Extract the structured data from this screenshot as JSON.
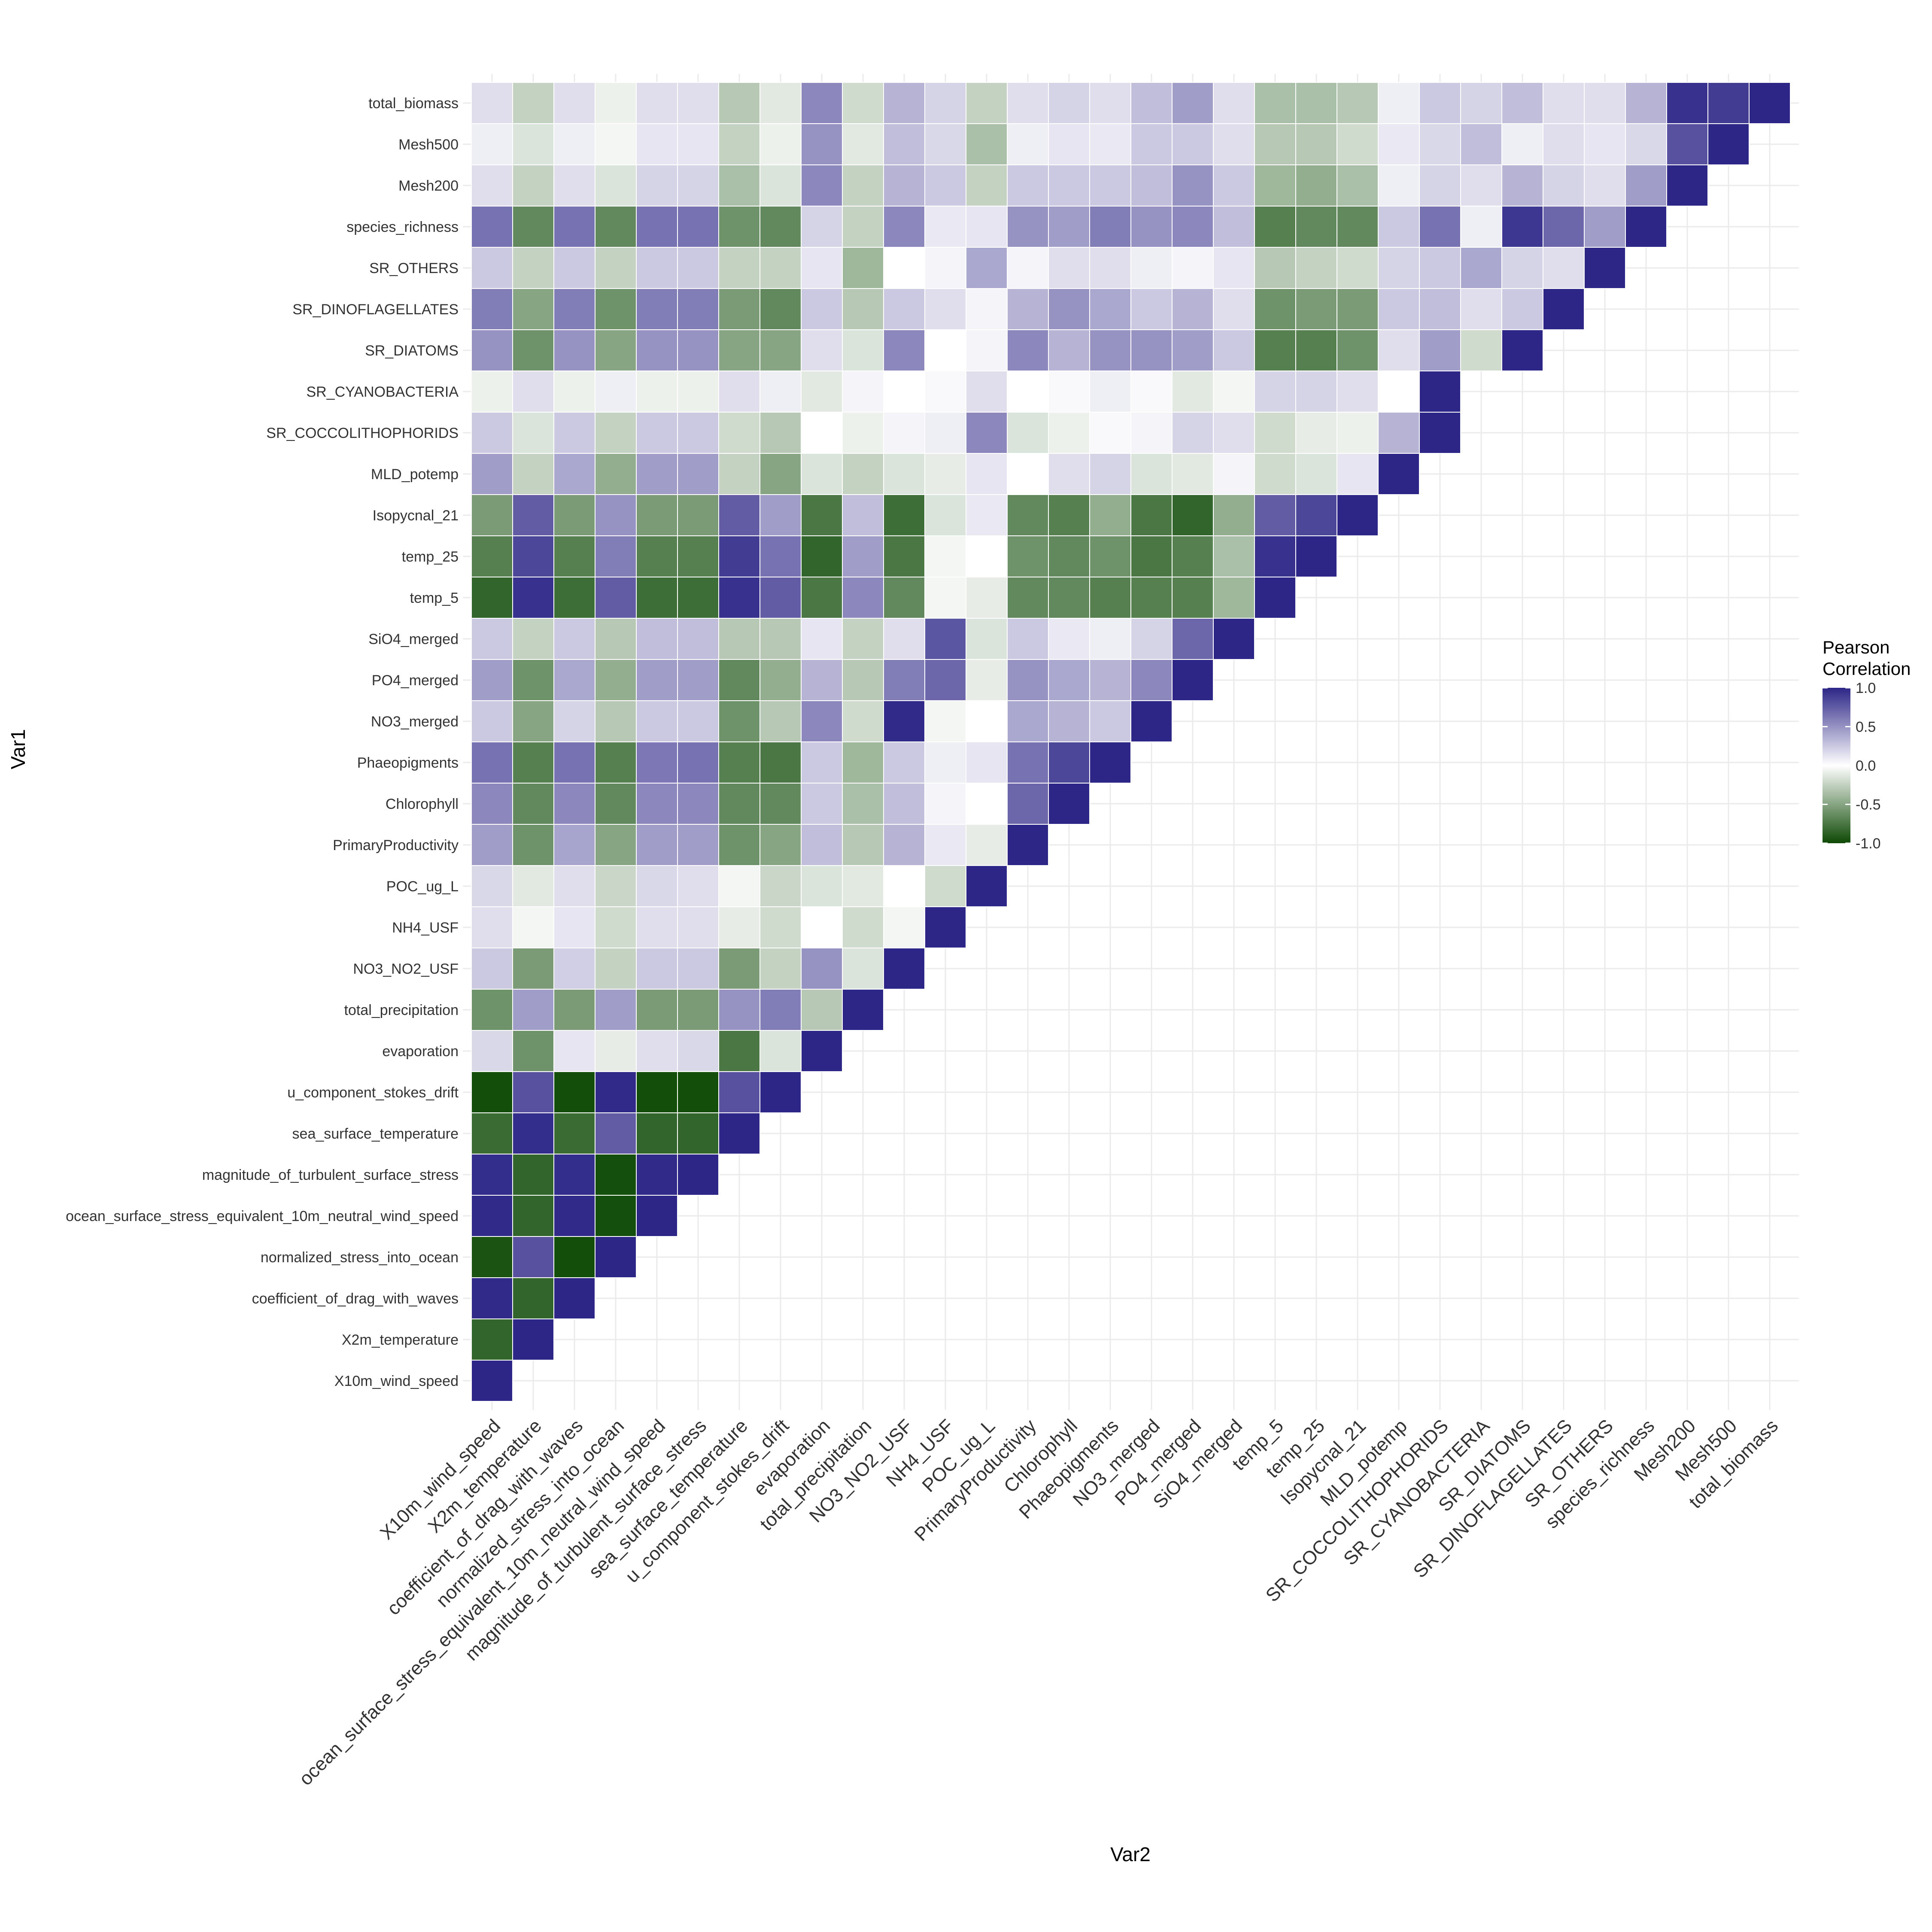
{
  "chart_data": {
    "type": "heatmap",
    "xlabel": "Var2",
    "ylabel": "Var1",
    "legend": {
      "title_line1": "Pearson",
      "title_line2": "Correlation",
      "ticks": [
        "1.0",
        "0.5",
        "0.0",
        "-0.5",
        "-1.0"
      ],
      "tick_values": [
        1,
        0.5,
        0,
        -0.5,
        -1
      ],
      "position": "right"
    },
    "colors": {
      "high": "#2d2687",
      "mid": "#ffffff",
      "low": "#0e4a05"
    },
    "limits": [
      -1,
      1
    ],
    "grid": true,
    "variables": [
      "X10m_wind_speed",
      "X2m_temperature",
      "coefficient_of_drag_with_waves",
      "normalized_stress_into_ocean",
      "ocean_surface_stress_equivalent_10m_neutral_wind_speed",
      "magnitude_of_turbulent_surface_stress",
      "sea_surface_temperature",
      "u_component_stokes_drift",
      "evaporation",
      "total_precipitation",
      "NO3_NO2_USF",
      "NH4_USF",
      "POC_ug_L",
      "PrimaryProductivity",
      "Chlorophyll",
      "Phaeopigments",
      "NO3_merged",
      "PO4_merged",
      "SiO4_merged",
      "temp_5",
      "temp_25",
      "Isopycnal_21",
      "MLD_potemp",
      "SR_COCCOLITHOPHORIDS",
      "SR_CYANOBACTERIA",
      "SR_DIATOMS",
      "SR_DINOFLAGELLATES",
      "SR_OTHERS",
      "species_richness",
      "Mesh200",
      "Mesh500",
      "total_biomass"
    ],
    "rows": [
      [
        1.0
      ],
      [
        -0.85,
        1.0
      ],
      [
        0.98,
        -0.85,
        1.0
      ],
      [
        -0.95,
        0.8,
        -0.98,
        1.0
      ],
      [
        0.98,
        -0.85,
        0.98,
        -0.97,
        1.0
      ],
      [
        0.97,
        -0.85,
        0.97,
        -0.97,
        0.98,
        1.0
      ],
      [
        -0.82,
        0.97,
        -0.82,
        0.75,
        -0.85,
        -0.85,
        1.0
      ],
      [
        -0.98,
        0.8,
        -0.98,
        0.98,
        -0.98,
        -0.98,
        0.8,
        1.0
      ],
      [
        0.18,
        -0.6,
        0.12,
        -0.1,
        0.15,
        0.18,
        -0.75,
        -0.15,
        1.0
      ],
      [
        -0.6,
        0.45,
        -0.55,
        0.45,
        -0.55,
        -0.55,
        0.5,
        0.6,
        -0.3,
        1.0
      ],
      [
        0.25,
        -0.55,
        0.22,
        -0.25,
        0.25,
        0.25,
        -0.55,
        -0.25,
        0.5,
        -0.15,
        1.0
      ],
      [
        0.15,
        -0.05,
        0.12,
        -0.2,
        0.15,
        0.15,
        -0.1,
        -0.2,
        0.0,
        -0.2,
        -0.05,
        1.0
      ],
      [
        0.18,
        -0.12,
        0.15,
        -0.22,
        0.18,
        0.15,
        -0.05,
        -0.22,
        -0.15,
        -0.12,
        0.0,
        -0.2,
        1.0
      ],
      [
        0.45,
        -0.6,
        0.42,
        -0.5,
        0.45,
        0.45,
        -0.6,
        -0.5,
        0.3,
        -0.3,
        0.35,
        0.1,
        -0.1,
        1.0
      ],
      [
        0.55,
        -0.65,
        0.55,
        -0.65,
        0.55,
        0.55,
        -0.65,
        -0.65,
        0.25,
        -0.35,
        0.3,
        0.05,
        0.0,
        0.7,
        1.0
      ],
      [
        0.65,
        -0.7,
        0.65,
        -0.7,
        0.62,
        0.65,
        -0.7,
        -0.75,
        0.25,
        -0.4,
        0.25,
        0.08,
        0.12,
        0.65,
        0.85,
        1.0
      ],
      [
        0.25,
        -0.5,
        0.2,
        -0.3,
        0.25,
        0.25,
        -0.6,
        -0.3,
        0.55,
        -0.2,
        0.98,
        -0.05,
        0.0,
        0.4,
        0.35,
        0.25,
        1.0
      ],
      [
        0.45,
        -0.6,
        0.4,
        -0.45,
        0.45,
        0.45,
        -0.65,
        -0.45,
        0.35,
        -0.3,
        0.6,
        0.7,
        -0.1,
        0.5,
        0.4,
        0.35,
        0.55,
        1.0
      ],
      [
        0.25,
        -0.25,
        0.25,
        -0.3,
        0.3,
        0.3,
        -0.3,
        -0.3,
        0.12,
        -0.25,
        0.15,
        0.78,
        -0.15,
        0.25,
        0.1,
        0.08,
        0.2,
        0.7,
        1.0
      ],
      [
        -0.85,
        0.95,
        -0.8,
        0.75,
        -0.8,
        -0.8,
        0.95,
        0.75,
        -0.75,
        0.55,
        -0.65,
        -0.05,
        -0.1,
        -0.65,
        -0.65,
        -0.7,
        -0.7,
        -0.7,
        -0.4,
        1.0
      ],
      [
        -0.7,
        0.85,
        -0.7,
        0.6,
        -0.7,
        -0.7,
        0.9,
        0.65,
        -0.85,
        0.45,
        -0.75,
        -0.05,
        0.0,
        -0.6,
        -0.65,
        -0.6,
        -0.75,
        -0.7,
        -0.35,
        0.95,
        1.0
      ],
      [
        -0.55,
        0.75,
        -0.55,
        0.5,
        -0.55,
        -0.55,
        0.75,
        0.45,
        -0.75,
        0.3,
        -0.8,
        -0.15,
        0.1,
        -0.65,
        -0.7,
        -0.45,
        -0.75,
        -0.85,
        -0.45,
        0.75,
        0.85,
        1.0
      ],
      [
        0.45,
        -0.25,
        0.4,
        -0.45,
        0.45,
        0.45,
        -0.25,
        -0.5,
        -0.15,
        -0.25,
        -0.15,
        -0.1,
        0.12,
        0.0,
        0.15,
        0.2,
        -0.15,
        -0.12,
        0.05,
        -0.2,
        -0.15,
        0.12,
        1.0
      ],
      [
        0.25,
        -0.15,
        0.25,
        -0.25,
        0.25,
        0.25,
        -0.2,
        -0.3,
        0.0,
        -0.08,
        0.05,
        0.08,
        0.55,
        -0.15,
        -0.08,
        0.03,
        0.05,
        0.2,
        0.15,
        -0.2,
        -0.1,
        -0.08,
        0.35,
        1.0
      ],
      [
        -0.08,
        0.15,
        -0.08,
        0.08,
        -0.08,
        -0.08,
        0.15,
        0.08,
        -0.12,
        0.05,
        0.0,
        0.03,
        0.15,
        0.0,
        0.03,
        0.08,
        0.03,
        -0.12,
        -0.05,
        0.2,
        0.2,
        0.15,
        0.0,
        1.0
      ],
      [
        0.5,
        -0.6,
        0.5,
        -0.5,
        0.5,
        0.5,
        -0.5,
        -0.5,
        0.15,
        -0.15,
        0.55,
        0.0,
        0.05,
        0.55,
        0.35,
        0.5,
        0.5,
        0.45,
        0.25,
        -0.7,
        -0.7,
        -0.6,
        0.15,
        0.45,
        -0.2,
        1.0
      ],
      [
        0.6,
        -0.5,
        0.6,
        -0.6,
        0.6,
        0.6,
        -0.55,
        -0.65,
        0.25,
        -0.3,
        0.25,
        0.15,
        0.05,
        0.35,
        0.5,
        0.4,
        0.25,
        0.35,
        0.15,
        -0.6,
        -0.55,
        -0.55,
        0.25,
        0.3,
        0.15,
        0.25,
        1.0
      ],
      [
        0.25,
        -0.25,
        0.25,
        -0.25,
        0.25,
        0.25,
        -0.25,
        -0.25,
        0.12,
        -0.4,
        0.0,
        0.05,
        0.4,
        0.05,
        0.15,
        0.15,
        0.08,
        0.05,
        0.12,
        -0.3,
        -0.25,
        -0.2,
        0.2,
        0.25,
        0.4,
        0.2,
        0.15,
        1.0
      ],
      [
        0.65,
        -0.65,
        0.65,
        -0.65,
        0.65,
        0.65,
        -0.6,
        -0.65,
        0.2,
        -0.25,
        0.55,
        0.1,
        0.12,
        0.5,
        0.45,
        0.6,
        0.5,
        0.55,
        0.3,
        -0.7,
        -0.65,
        -0.65,
        0.25,
        0.65,
        0.08,
        0.92,
        0.7,
        0.45,
        1.0
      ],
      [
        0.15,
        -0.25,
        0.15,
        -0.15,
        0.2,
        0.2,
        -0.35,
        -0.15,
        0.55,
        -0.25,
        0.35,
        0.25,
        -0.25,
        0.25,
        0.25,
        0.25,
        0.3,
        0.5,
        0.25,
        -0.4,
        -0.45,
        -0.35,
        0.08,
        0.2,
        0.15,
        0.35,
        0.2,
        0.15,
        0.45,
        1.0
      ],
      [
        0.08,
        -0.15,
        0.08,
        -0.05,
        0.12,
        0.12,
        -0.25,
        -0.08,
        0.5,
        -0.12,
        0.3,
        0.18,
        -0.35,
        0.08,
        0.12,
        0.1,
        0.25,
        0.25,
        0.15,
        -0.3,
        -0.3,
        -0.2,
        0.1,
        0.18,
        0.3,
        0.08,
        0.15,
        0.12,
        0.18,
        0.8,
        1.0
      ],
      [
        0.15,
        -0.25,
        0.15,
        -0.08,
        0.15,
        0.15,
        -0.3,
        -0.12,
        0.55,
        -0.2,
        0.35,
        0.2,
        -0.25,
        0.15,
        0.2,
        0.15,
        0.3,
        0.45,
        0.15,
        -0.35,
        -0.35,
        -0.3,
        0.08,
        0.25,
        0.2,
        0.3,
        0.15,
        0.15,
        0.35,
        0.95,
        0.9,
        1.0
      ]
    ]
  }
}
